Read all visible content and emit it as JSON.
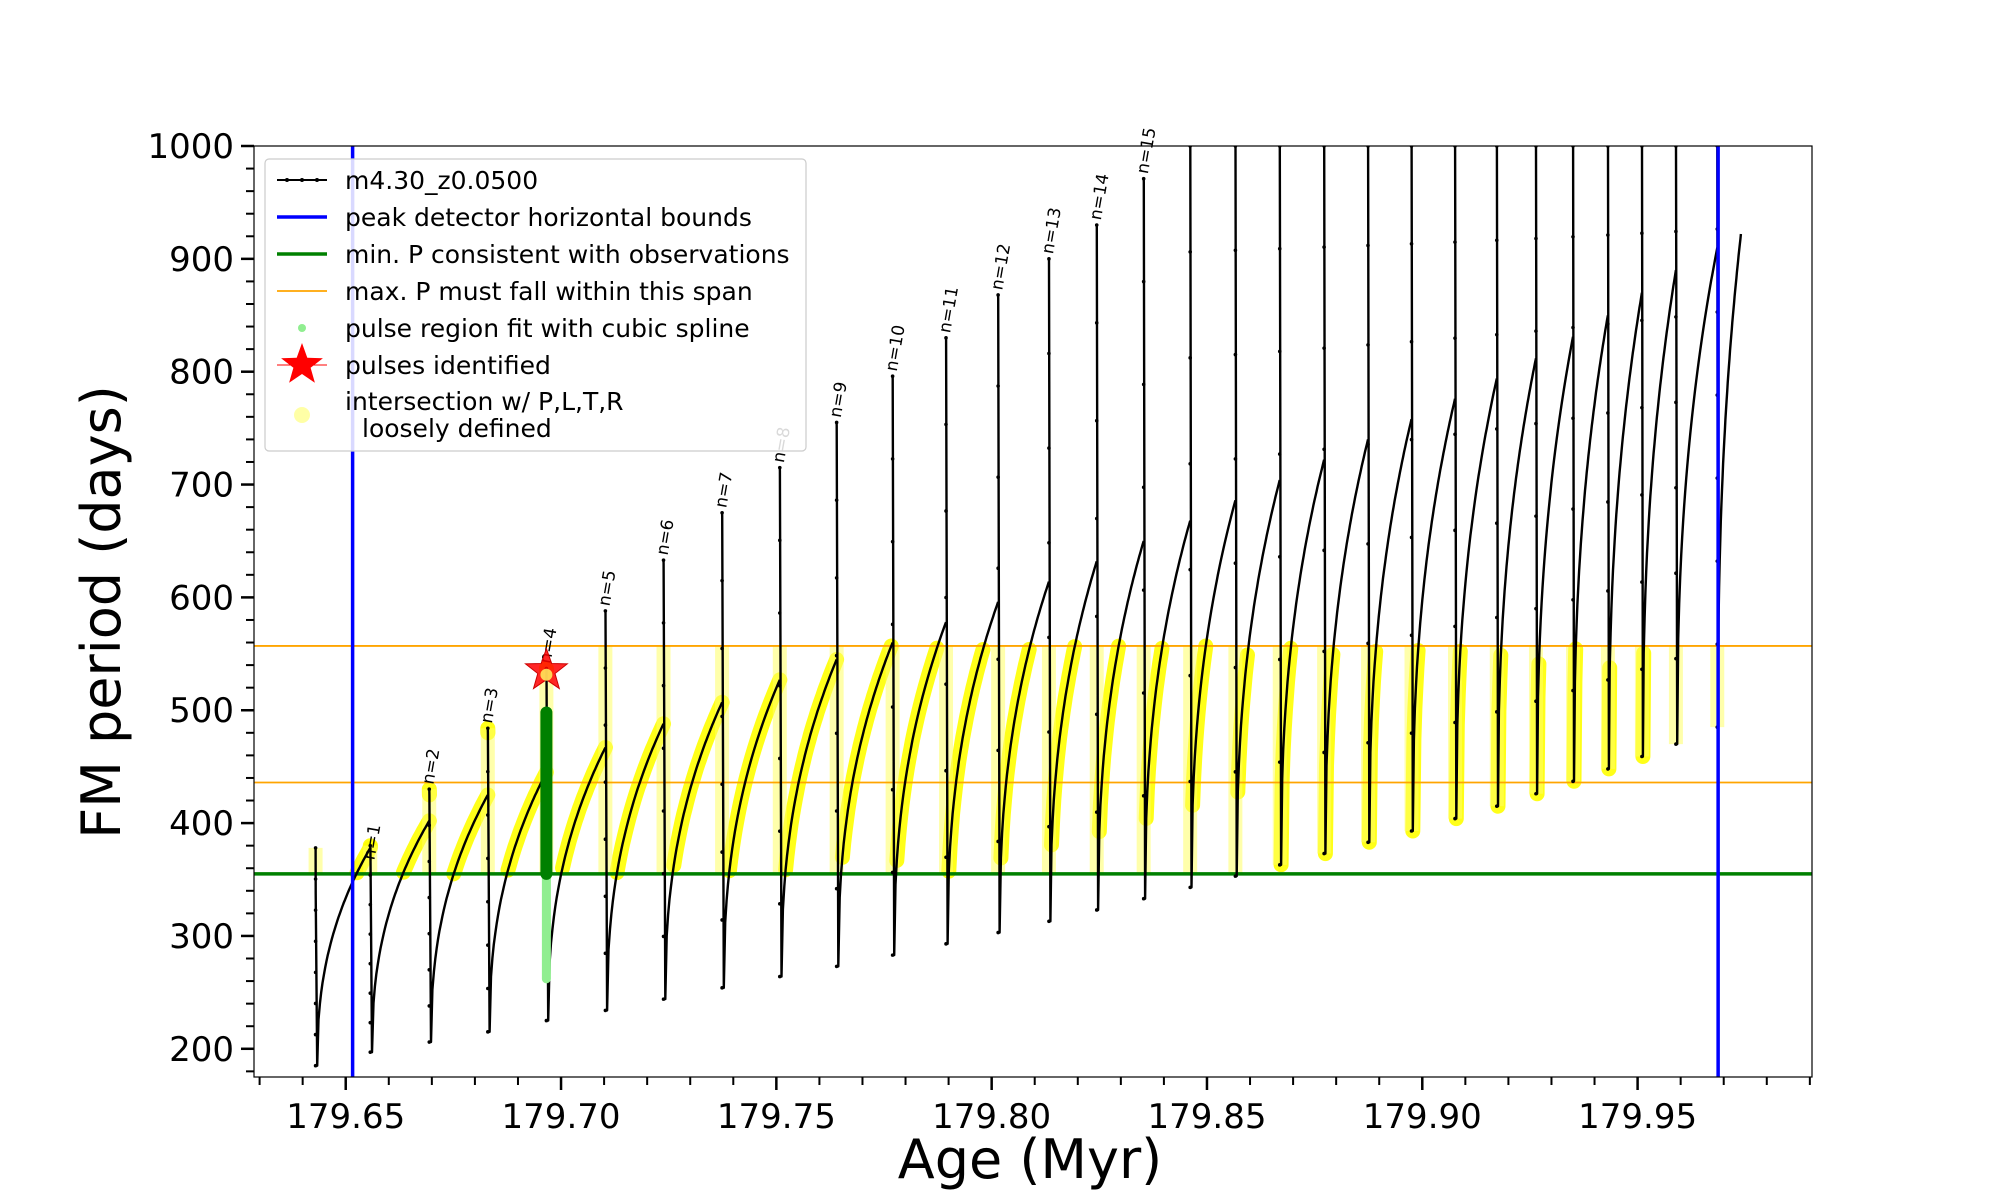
{
  "chart_data": {
    "type": "line",
    "xlabel": "Age (Myr)",
    "ylabel": "FM period (days)",
    "xlim": [
      179.6287,
      179.9905
    ],
    "ylim": [
      175,
      1000
    ],
    "x_ticks": [
      179.65,
      179.7,
      179.75,
      179.8,
      179.85,
      179.9,
      179.95
    ],
    "x_tick_labels": [
      "179.65",
      "179.70",
      "179.75",
      "179.80",
      "179.85",
      "179.90",
      "179.95"
    ],
    "y_ticks": [
      200,
      300,
      400,
      500,
      600,
      700,
      800,
      900,
      1000
    ],
    "y_tick_labels": [
      "200",
      "300",
      "400",
      "500",
      "600",
      "700",
      "800",
      "900",
      "1000"
    ],
    "grid": false,
    "legend_position": "top-left",
    "legend": [
      {
        "label": "m4.30_z0.0500",
        "color": "#000000",
        "kind": "line-marker"
      },
      {
        "label": "peak detector horizontal bounds",
        "color": "#0000ff",
        "kind": "line"
      },
      {
        "label": "min. P consistent with observations",
        "color": "#008000",
        "kind": "line"
      },
      {
        "label": "max. P must fall within this span",
        "color": "#ffa500",
        "kind": "thin-line"
      },
      {
        "label": "pulse region fit with cubic spline",
        "color": "#90ee90",
        "kind": "dot"
      },
      {
        "label": "pulses identified",
        "color": "#ff0000",
        "kind": "star"
      },
      {
        "label": "intersection w/ P,L,T,R",
        "label2": "loosely defined",
        "color": "#ffff00",
        "kind": "dot-faint"
      }
    ],
    "vertical_bounds": [
      179.6516,
      179.9687
    ],
    "min_period": 355,
    "max_period_span": [
      436,
      557
    ],
    "pulse_identified": {
      "x": 179.6966,
      "y": 535
    },
    "series": [
      {
        "name": "m4.30_z0.0500",
        "color": "#000000",
        "pulses": [
          {
            "x": 179.643,
            "xe": 179.6557,
            "start": 338,
            "min": 185,
            "end": 378,
            "spike": 378
          },
          {
            "x": 179.6557,
            "xe": 179.6694,
            "start": 380,
            "min": 197,
            "end": 402,
            "spike": 380
          },
          {
            "x": 179.6694,
            "xe": 179.683,
            "start": 425,
            "min": 206,
            "end": 425,
            "spike": 430
          },
          {
            "x": 179.683,
            "xe": 179.6966,
            "start": 480,
            "min": 215,
            "end": 445,
            "spike": 484
          },
          {
            "x": 179.6966,
            "xe": 179.7103,
            "start": 535,
            "min": 225,
            "end": 467,
            "spike": 537
          },
          {
            "x": 179.7103,
            "xe": 179.7238,
            "start": 586,
            "min": 234,
            "end": 488,
            "spike": 588
          },
          {
            "x": 179.7238,
            "xe": 179.7374,
            "start": 630,
            "min": 244,
            "end": 507,
            "spike": 633
          },
          {
            "x": 179.7374,
            "xe": 179.7508,
            "start": 672,
            "min": 254,
            "end": 527,
            "spike": 675
          },
          {
            "x": 179.7508,
            "xe": 179.764,
            "start": 712,
            "min": 264,
            "end": 545,
            "spike": 715
          },
          {
            "x": 179.764,
            "xe": 179.777,
            "start": 752,
            "min": 273,
            "end": 560,
            "spike": 755
          },
          {
            "x": 179.777,
            "xe": 179.7894,
            "start": 793,
            "min": 283,
            "end": 578,
            "spike": 796
          },
          {
            "x": 179.7894,
            "xe": 179.8015,
            "start": 828,
            "min": 293,
            "end": 596,
            "spike": 830
          },
          {
            "x": 179.8015,
            "xe": 179.8133,
            "start": 865,
            "min": 303,
            "end": 614,
            "spike": 868
          },
          {
            "x": 179.8133,
            "xe": 179.8244,
            "start": 898,
            "min": 313,
            "end": 632,
            "spike": 900
          },
          {
            "x": 179.8244,
            "xe": 179.8353,
            "start": 928,
            "min": 323,
            "end": 650,
            "spike": 930
          },
          {
            "x": 179.8353,
            "xe": 179.8461,
            "start": 968,
            "min": 333,
            "end": 668,
            "spike": 971
          },
          {
            "x": 179.8461,
            "xe": 179.8566,
            "start": 1000,
            "min": 343,
            "end": 686,
            "spike": 1000
          },
          {
            "x": 179.8566,
            "xe": 179.8669,
            "start": 1000,
            "min": 353,
            "end": 704,
            "spike": 1000
          },
          {
            "x": 179.8669,
            "xe": 179.8772,
            "start": 1000,
            "min": 363,
            "end": 722,
            "spike": 1000
          },
          {
            "x": 179.8772,
            "xe": 179.8874,
            "start": 1000,
            "min": 373,
            "end": 740,
            "spike": 1000
          },
          {
            "x": 179.8874,
            "xe": 179.8975,
            "start": 1000,
            "min": 383,
            "end": 758,
            "spike": 1000
          },
          {
            "x": 179.8975,
            "xe": 179.9076,
            "start": 1000,
            "min": 393,
            "end": 776,
            "spike": 1000
          },
          {
            "x": 179.9076,
            "xe": 179.9173,
            "start": 1000,
            "min": 404,
            "end": 794,
            "spike": 1000
          },
          {
            "x": 179.9173,
            "xe": 179.9264,
            "start": 1000,
            "min": 415,
            "end": 812,
            "spike": 1000
          },
          {
            "x": 179.9264,
            "xe": 179.935,
            "start": 1000,
            "min": 426,
            "end": 831,
            "spike": 1000
          },
          {
            "x": 179.935,
            "xe": 179.9431,
            "start": 1000,
            "min": 437,
            "end": 850,
            "spike": 1000
          },
          {
            "x": 179.9431,
            "xe": 179.951,
            "start": 1000,
            "min": 448,
            "end": 870,
            "spike": 1000
          },
          {
            "x": 179.951,
            "xe": 179.9589,
            "start": 1000,
            "min": 459,
            "end": 890,
            "spike": 1000
          },
          {
            "x": 179.9589,
            "xe": 179.9685,
            "start": 1000,
            "min": 470,
            "end": 910,
            "spike": 1000
          },
          {
            "x": 179.9685,
            "xe": 179.974,
            "start": 1000,
            "min": 485,
            "end": 922,
            "spike": 1000
          }
        ]
      }
    ],
    "annotations": [
      {
        "text": "n=1",
        "x": 179.6557,
        "y": 365
      },
      {
        "text": "n=2",
        "x": 179.6694,
        "y": 432
      },
      {
        "text": "n=3",
        "x": 179.683,
        "y": 486
      },
      {
        "text": "n=4",
        "x": 179.6966,
        "y": 539
      },
      {
        "text": "n=5",
        "x": 179.7103,
        "y": 590
      },
      {
        "text": "n=6",
        "x": 179.7238,
        "y": 635
      },
      {
        "text": "n=7",
        "x": 179.7374,
        "y": 677
      },
      {
        "text": "n=8",
        "x": 179.7508,
        "y": 717
      },
      {
        "text": "n=9",
        "x": 179.764,
        "y": 757
      },
      {
        "text": "n=10",
        "x": 179.777,
        "y": 798
      },
      {
        "text": "n=11",
        "x": 179.7894,
        "y": 832
      },
      {
        "text": "n=12",
        "x": 179.8015,
        "y": 870
      },
      {
        "text": "n=13",
        "x": 179.8133,
        "y": 902
      },
      {
        "text": "n=14",
        "x": 179.8244,
        "y": 932
      },
      {
        "text": "n=15",
        "x": 179.8353,
        "y": 973
      }
    ]
  }
}
